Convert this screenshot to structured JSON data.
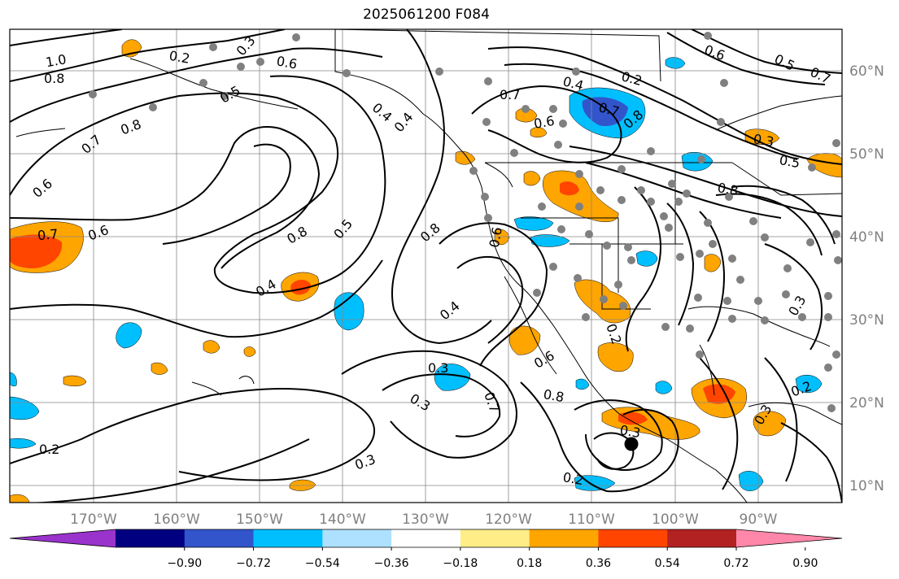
{
  "title": "2025061200 F084",
  "lon_labels": [
    "170°W",
    "160°W",
    "150°W",
    "140°W",
    "130°W",
    "120°W",
    "110°W",
    "100°W",
    "90°W"
  ],
  "lat_labels": [
    "60°N",
    "50°N",
    "40°N",
    "30°N",
    "20°N",
    "10°N"
  ],
  "colorbar": {
    "colors": [
      "#9933cc",
      "#000080",
      "#3355cc",
      "#00bfff",
      "#aee0ff",
      "#ffffff",
      "#ffee88",
      "#ffa500",
      "#ff4500",
      "#b22222",
      "#ff88aa"
    ],
    "tick_labels": [
      "−0.90",
      "−0.72",
      "−0.54",
      "−0.36",
      "−0.18",
      "0.18",
      "0.36",
      "0.54",
      "0.72",
      "0.90"
    ]
  },
  "contour_labels": [
    "1.0",
    "0.8",
    "0.2",
    "0.3",
    "0.6",
    "0.7",
    "0.8",
    "0.6",
    "0.7",
    "0.6",
    "0.8",
    "0.5",
    "0.4",
    "0.5",
    "0.4",
    "0.4",
    "0.7",
    "0.6",
    "0.4",
    "0.7",
    "0.2",
    "0.8",
    "0.3",
    "0.5",
    "0.8",
    "0.6",
    "0.5",
    "0.7",
    "0.8",
    "0.6",
    "0.4",
    "0.2",
    "0.6",
    "0.3",
    "0.8",
    "0.7",
    "0.3",
    "0.3",
    "0.2",
    "0.2",
    "0.3",
    "0.2",
    "0.3",
    "0.3"
  ],
  "colors": {
    "positive_fill": "#ffa500",
    "strong_positive_fill": "#ff4500",
    "negative_fill": "#00bfff",
    "strong_negative_fill": "#3355cc",
    "station_dot": "#808080",
    "grid": "#888888"
  }
}
